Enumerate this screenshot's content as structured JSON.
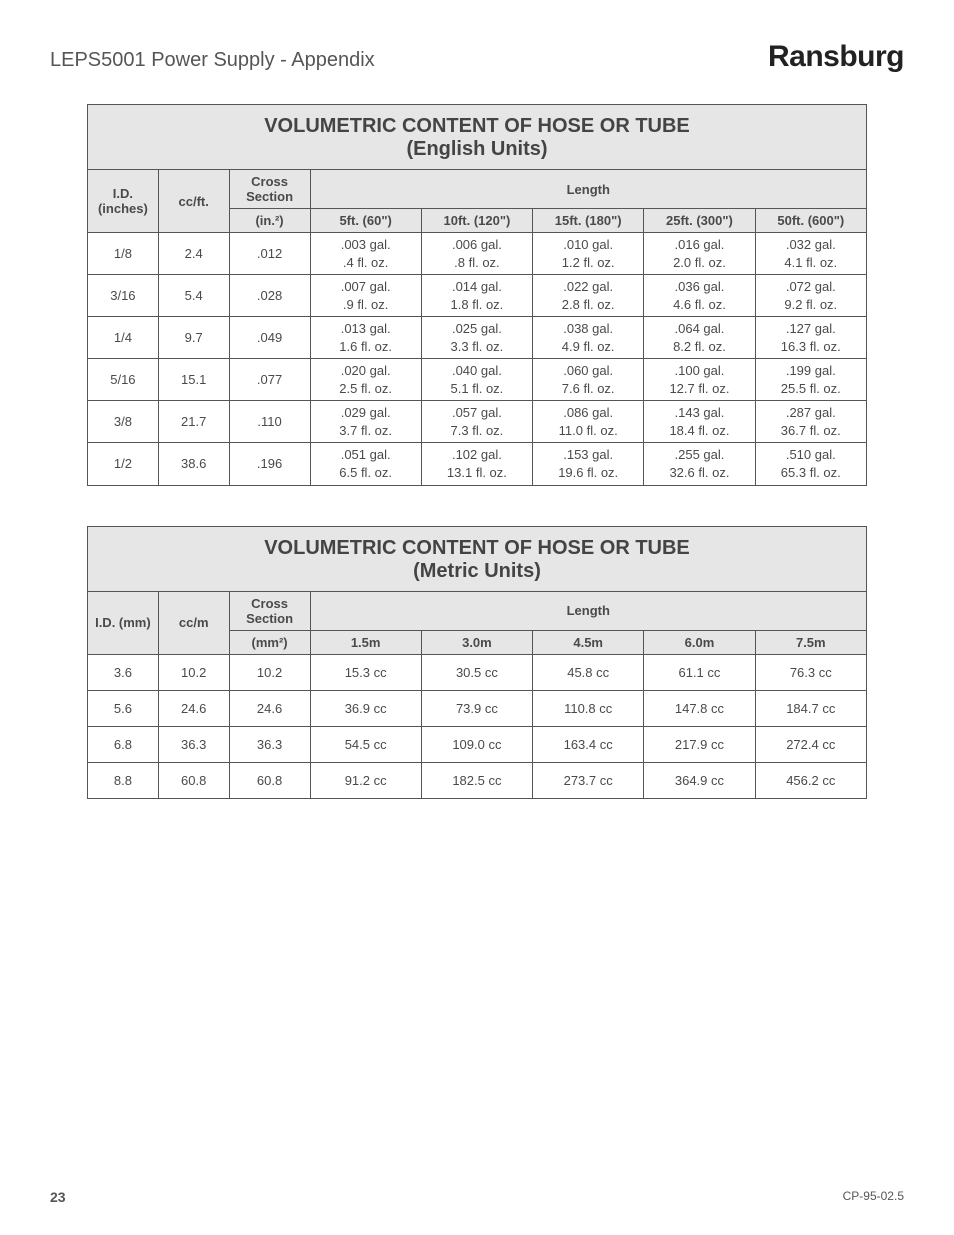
{
  "header": {
    "left": "LEPS5001 Power Supply - Appendix",
    "brand": "Ransburg"
  },
  "table_english": {
    "title_line1": "VOLUMETRIC CONTENT OF HOSE OR TUBE",
    "title_line2": "(English Units)",
    "col_id_label": "I.D. (inches)",
    "col_rate_label": "cc/ft.",
    "col_xs_label_top": "Cross Section",
    "col_xs_label_bot": "(in.²)",
    "length_label": "Length",
    "length_headers": [
      "5ft. (60\")",
      "10ft. (120\")",
      "15ft. (180\")",
      "25ft. (300\")",
      "50ft. (600\")"
    ],
    "rows": [
      {
        "id": "1/8",
        "rate": "2.4",
        "xs": ".012",
        "cells": [
          ".003 gal.\n.4 fl. oz.",
          ".006 gal.\n.8 fl. oz.",
          ".010 gal.\n1.2 fl. oz.",
          ".016 gal.\n2.0 fl. oz.",
          ".032 gal.\n4.1 fl. oz."
        ]
      },
      {
        "id": "3/16",
        "rate": "5.4",
        "xs": ".028",
        "cells": [
          ".007 gal.\n.9 fl. oz.",
          ".014 gal.\n1.8 fl. oz.",
          ".022 gal.\n2.8 fl. oz.",
          ".036 gal.\n4.6 fl. oz.",
          ".072 gal.\n9.2 fl. oz."
        ]
      },
      {
        "id": "1/4",
        "rate": "9.7",
        "xs": ".049",
        "cells": [
          ".013 gal.\n1.6 fl. oz.",
          ".025 gal.\n3.3 fl. oz.",
          ".038 gal.\n4.9 fl. oz.",
          ".064 gal.\n8.2 fl. oz.",
          ".127 gal.\n16.3 fl. oz."
        ]
      },
      {
        "id": "5/16",
        "rate": "15.1",
        "xs": ".077",
        "cells": [
          ".020 gal.\n2.5 fl. oz.",
          ".040 gal.\n5.1 fl. oz.",
          ".060 gal.\n7.6 fl. oz.",
          ".100 gal.\n12.7 fl. oz.",
          ".199 gal.\n25.5 fl. oz."
        ]
      },
      {
        "id": "3/8",
        "rate": "21.7",
        "xs": ".110",
        "cells": [
          ".029 gal.\n3.7 fl. oz.",
          ".057 gal.\n7.3 fl. oz.",
          ".086 gal.\n11.0 fl. oz.",
          ".143 gal.\n18.4 fl. oz.",
          ".287 gal.\n36.7 fl. oz."
        ]
      },
      {
        "id": "1/2",
        "rate": "38.6",
        "xs": ".196",
        "cells": [
          ".051 gal.\n6.5 fl. oz.",
          ".102 gal.\n13.1 fl. oz.",
          ".153 gal.\n19.6 fl. oz.",
          ".255 gal.\n32.6 fl. oz.",
          ".510 gal.\n65.3 fl. oz."
        ]
      }
    ]
  },
  "table_metric": {
    "title_line1": "VOLUMETRIC CONTENT OF HOSE OR TUBE",
    "title_line2": "(Metric Units)",
    "col_id_label": "I.D. (mm)",
    "col_rate_label": "cc/m",
    "col_xs_label_top": "Cross Section",
    "col_xs_label_bot": "(mm²)",
    "length_label": "Length",
    "length_headers": [
      "1.5m",
      "3.0m",
      "4.5m",
      "6.0m",
      "7.5m"
    ],
    "rows": [
      {
        "id": "3.6",
        "rate": "10.2",
        "xs": "10.2",
        "cells": [
          "15.3 cc",
          "30.5 cc",
          "45.8 cc",
          "61.1 cc",
          "76.3 cc"
        ]
      },
      {
        "id": "5.6",
        "rate": "24.6",
        "xs": "24.6",
        "cells": [
          "36.9 cc",
          "73.9 cc",
          "110.8 cc",
          "147.8 cc",
          "184.7 cc"
        ]
      },
      {
        "id": "6.8",
        "rate": "36.3",
        "xs": "36.3",
        "cells": [
          "54.5 cc",
          "109.0 cc",
          "163.4 cc",
          "217.9 cc",
          "272.4 cc"
        ]
      },
      {
        "id": "8.8",
        "rate": "60.8",
        "xs": "60.8",
        "cells": [
          "91.2 cc",
          "182.5 cc",
          "273.7 cc",
          "364.9 cc",
          "456.2 cc"
        ]
      }
    ]
  },
  "footer": {
    "page_number": "23",
    "doc_code": "CP-95-02.5"
  }
}
